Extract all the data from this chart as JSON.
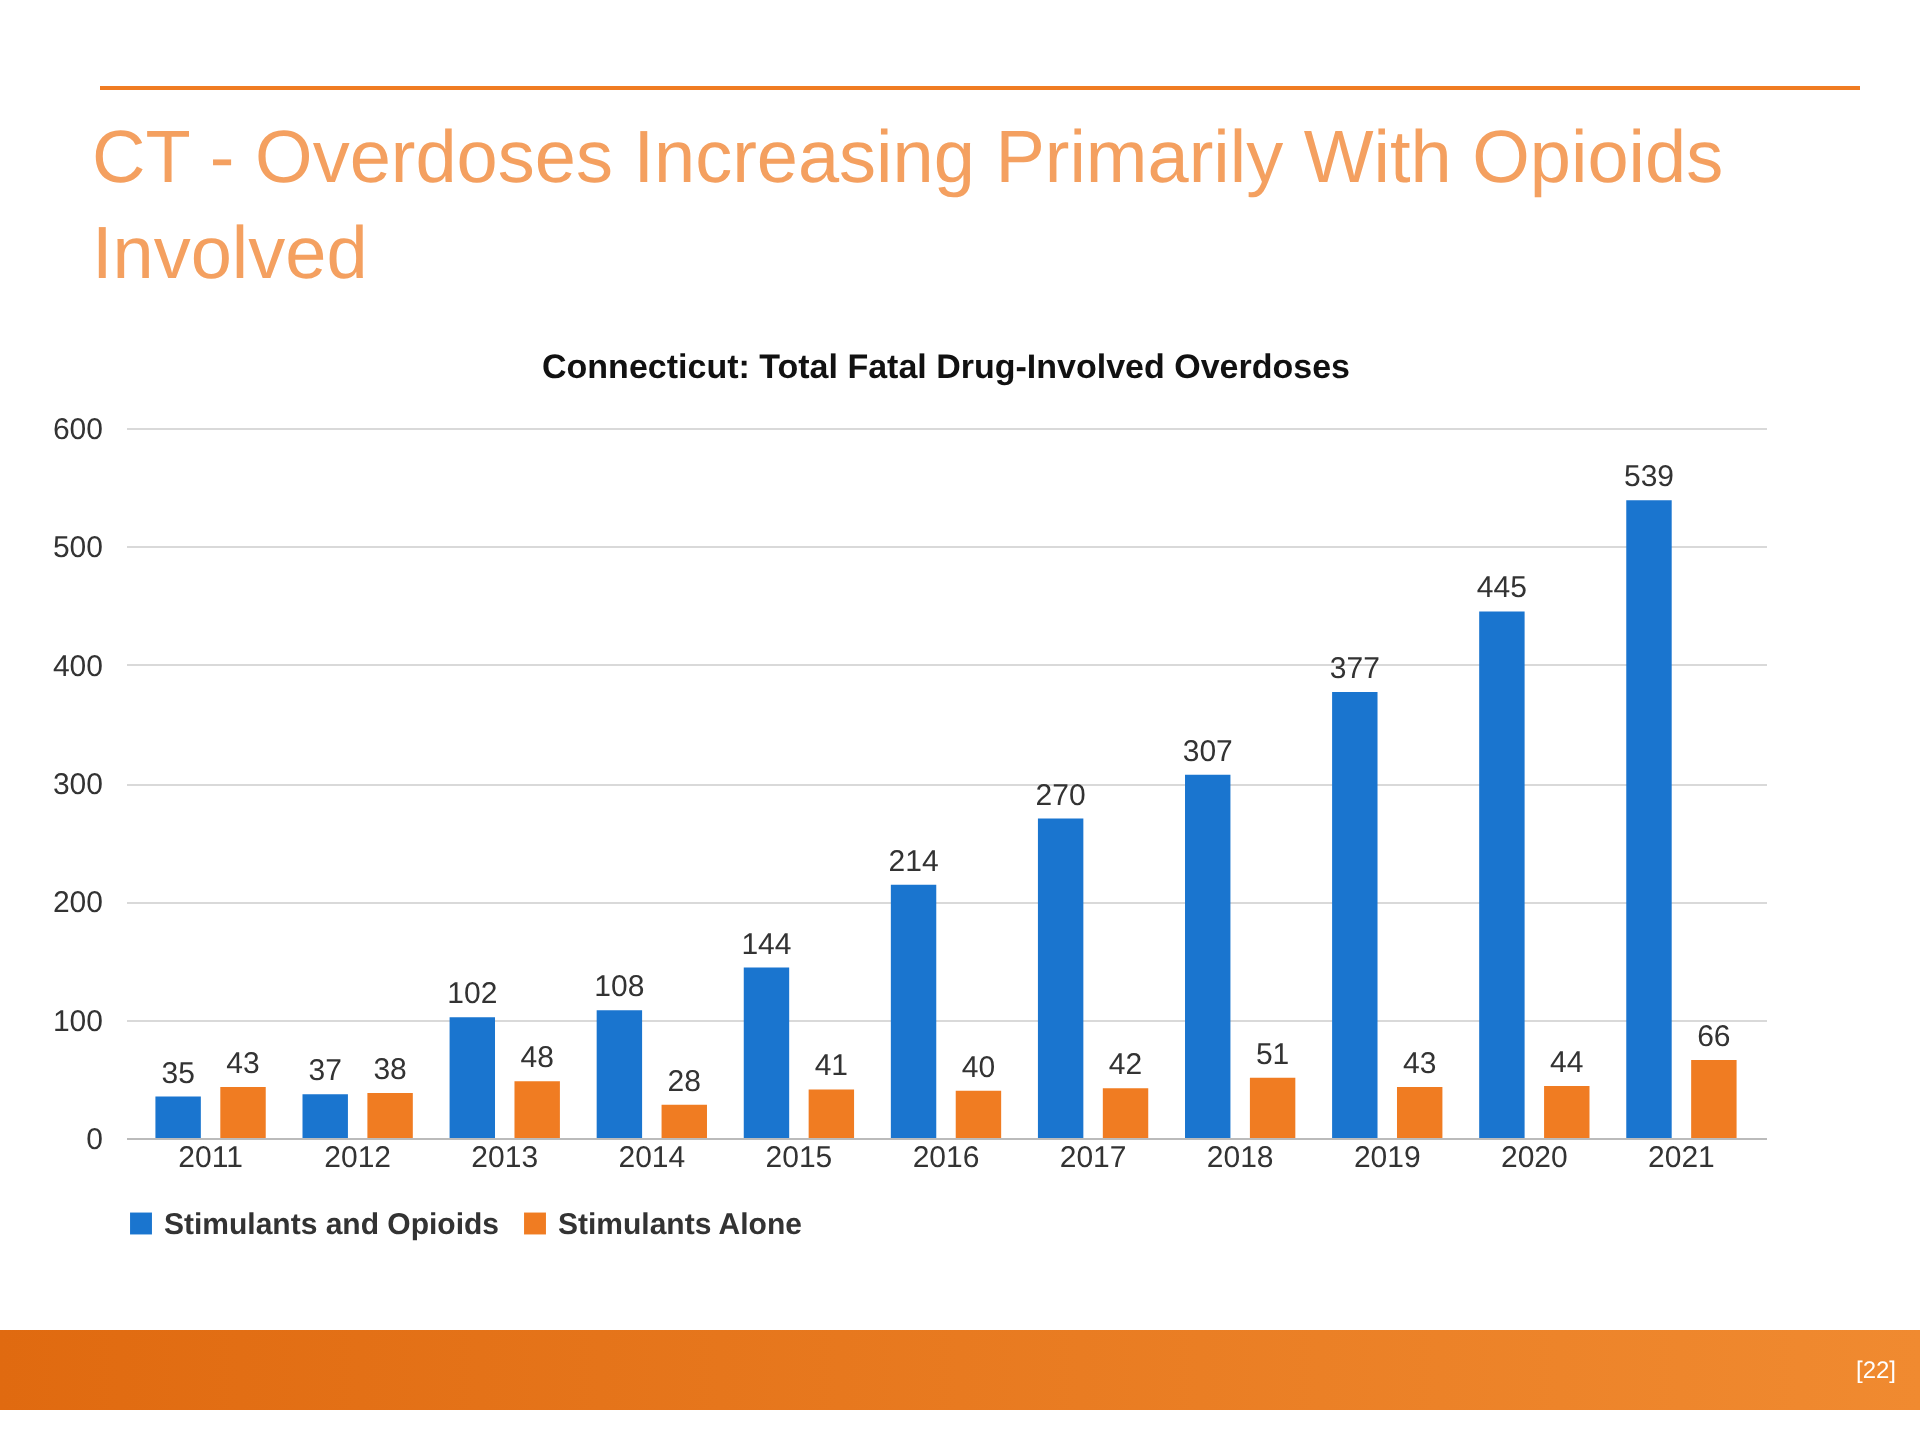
{
  "chart_data": {
    "type": "bar",
    "title": "CT - Overdoses Increasing Primarily With Opioids Involved",
    "subtitle": "Connecticut: Total Fatal Drug-Involved Overdoses",
    "categories": [
      "2011",
      "2012",
      "2013",
      "2014",
      "2015",
      "2016",
      "2017",
      "2018",
      "2019",
      "2020",
      "2021"
    ],
    "series": [
      {
        "name": "Stimulants and Opioids",
        "color": "#1a75cf",
        "values": [
          35,
          37,
          102,
          108,
          144,
          214,
          270,
          307,
          377,
          445,
          539
        ]
      },
      {
        "name": "Stimulants Alone",
        "color": "#f07c22",
        "values": [
          43,
          38,
          48,
          28,
          41,
          40,
          42,
          51,
          43,
          44,
          66
        ]
      }
    ],
    "ylim": [
      0,
      600
    ],
    "yticks": [
      0,
      100,
      200,
      300,
      400,
      500,
      600
    ],
    "grid": "y",
    "legend": "bottom",
    "data_labels": true,
    "annotations": [
      "[22]"
    ]
  }
}
